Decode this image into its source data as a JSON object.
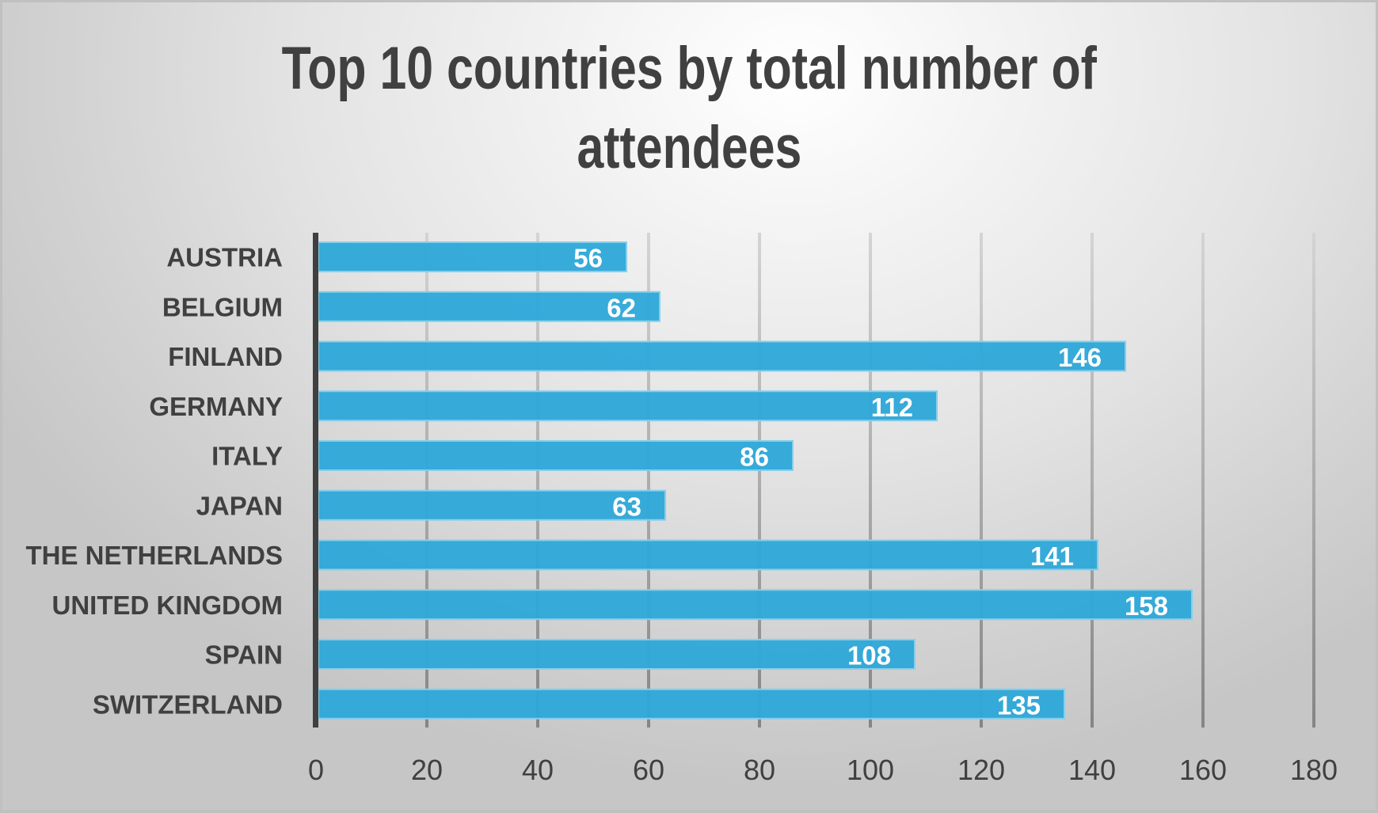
{
  "chart_data": {
    "type": "bar",
    "orientation": "horizontal",
    "title": "Top 10 countries by total number of attendees",
    "title_lines": [
      "Top 10 countries by total number of",
      "attendees"
    ],
    "categories": [
      "AUSTRIA",
      "BELGIUM",
      "FINLAND",
      "GERMANY",
      "ITALY",
      "JAPAN",
      "THE NETHERLANDS",
      "UNITED KINGDOM",
      "SPAIN",
      "SWITZERLAND"
    ],
    "values": [
      56,
      62,
      146,
      112,
      86,
      63,
      141,
      158,
      108,
      135
    ],
    "data_labels": [
      "56",
      "62",
      "146",
      "112",
      "86",
      "63",
      "141",
      "158",
      "108",
      "135"
    ],
    "xlabel": "",
    "ylabel": "",
    "xlim": [
      0,
      180
    ],
    "xticks": [
      0,
      20,
      40,
      60,
      80,
      100,
      120,
      140,
      160,
      180
    ],
    "xtick_labels": [
      "0",
      "20",
      "40",
      "60",
      "80",
      "100",
      "120",
      "140",
      "160",
      "180"
    ],
    "grid": true,
    "legend": "none",
    "colors": {
      "bar_fill": "#2FA8D9",
      "bar_border": "#86CFEA",
      "text": "#404040",
      "data_label": "#FFFFFF",
      "axis": "#404040"
    }
  }
}
